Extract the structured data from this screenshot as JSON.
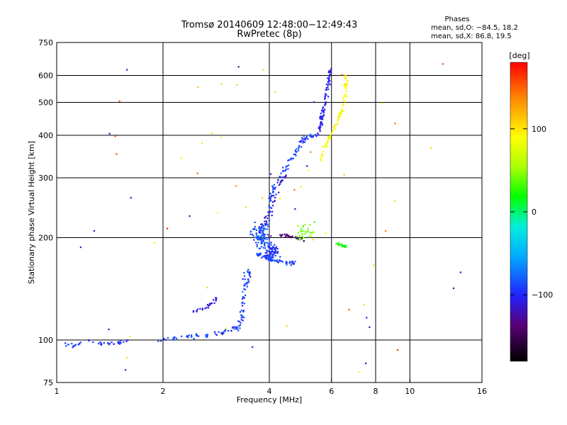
{
  "chart_data": {
    "type": "scatter",
    "title": "Tromsø 20140609 12:48:00−12:49:43",
    "subtitle": "RwPretec (8p)",
    "xlabel": "Frequency [MHz]",
    "ylabel": "Stationary phase Virtual Height [km]",
    "x_scale": "log",
    "y_scale": "log",
    "xlim": [
      1,
      16
    ],
    "ylim": [
      75,
      750
    ],
    "x_ticks": [
      1,
      2,
      4,
      6,
      8,
      10,
      16
    ],
    "x_tick_labels": [
      "1",
      "2",
      "4",
      "6",
      "8",
      "10",
      "16"
    ],
    "y_ticks": [
      75,
      100,
      200,
      300,
      400,
      500,
      600,
      750
    ],
    "y_tick_labels": [
      "75",
      "100",
      "200",
      "300",
      "400",
      "500",
      "600",
      "750"
    ],
    "x_grid": [
      2,
      4,
      6,
      8,
      10
    ],
    "y_grid": [
      100,
      200,
      300,
      400,
      500,
      600
    ],
    "grid": true,
    "colorbar": {
      "label": "[deg]",
      "range": [
        -180,
        180
      ],
      "ticks": [
        100,
        0,
        -100
      ],
      "tick_labels": [
        "100",
        "0",
        "−100"
      ]
    },
    "phases": {
      "heading": "Phases",
      "line_o": "mean, sd,O:  −84.5, 18.2",
      "line_x": "mean, sd,X:  86.8, 19.5"
    },
    "clusters": [
      {
        "kind": "line",
        "phase": -95,
        "count": 40,
        "pts": [
          [
            1.05,
            98
          ],
          [
            1.1,
            96
          ],
          [
            1.2,
            99
          ],
          [
            1.35,
            98
          ],
          [
            1.5,
            98
          ],
          [
            1.58,
            99
          ]
        ],
        "spread": 0.012
      },
      {
        "kind": "line",
        "phase": -90,
        "count": 60,
        "pts": [
          [
            1.95,
            100
          ],
          [
            2.1,
            101
          ],
          [
            2.3,
            102
          ],
          [
            2.5,
            103
          ],
          [
            2.8,
            104
          ],
          [
            3.1,
            107
          ],
          [
            3.3,
            110
          ]
        ],
        "spread": 0.012
      },
      {
        "kind": "line",
        "phase": -110,
        "count": 25,
        "pts": [
          [
            2.45,
            122
          ],
          [
            2.6,
            123
          ],
          [
            2.75,
            128
          ],
          [
            2.85,
            133
          ]
        ],
        "spread": 0.01
      },
      {
        "kind": "line",
        "phase": -90,
        "count": 55,
        "pts": [
          [
            3.3,
            108
          ],
          [
            3.35,
            120
          ],
          [
            3.4,
            135
          ],
          [
            3.45,
            150
          ],
          [
            3.5,
            160
          ]
        ],
        "spread": 0.02
      },
      {
        "kind": "blob",
        "phase": -85,
        "count": 100,
        "center": [
          3.8,
          200
        ],
        "rx": 0.05,
        "ry": 0.07
      },
      {
        "kind": "blob",
        "phase": -95,
        "count": 70,
        "center": [
          4.05,
          182
        ],
        "rx": 0.04,
        "ry": 0.05
      },
      {
        "kind": "line",
        "phase": -90,
        "count": 70,
        "pts": [
          [
            3.7,
            180
          ],
          [
            3.9,
            175
          ],
          [
            4.1,
            172
          ],
          [
            4.4,
            170
          ],
          [
            4.7,
            168
          ]
        ],
        "spread": 0.012
      },
      {
        "kind": "line",
        "phase": -90,
        "count": 100,
        "pts": [
          [
            3.95,
            210
          ],
          [
            4.0,
            230
          ],
          [
            4.05,
            260
          ],
          [
            4.15,
            285
          ],
          [
            4.3,
            305
          ],
          [
            4.5,
            325
          ],
          [
            4.7,
            350
          ],
          [
            4.9,
            380
          ],
          [
            5.1,
            395
          ],
          [
            5.4,
            400
          ]
        ],
        "spread": 0.012
      },
      {
        "kind": "line",
        "phase": -110,
        "count": 40,
        "pts": [
          [
            3.8,
            215
          ],
          [
            4.0,
            235
          ],
          [
            4.1,
            250
          ],
          [
            4.3,
            290
          ],
          [
            4.5,
            310
          ]
        ],
        "spread": 0.012
      },
      {
        "kind": "line",
        "phase": -140,
        "count": 25,
        "pts": [
          [
            4.3,
            205
          ],
          [
            4.5,
            203
          ],
          [
            4.8,
            200
          ],
          [
            5.0,
            197
          ]
        ],
        "spread": 0.01
      },
      {
        "kind": "line",
        "phase": -105,
        "count": 90,
        "pts": [
          [
            5.5,
            400
          ],
          [
            5.6,
            440
          ],
          [
            5.7,
            480
          ],
          [
            5.8,
            530
          ],
          [
            5.9,
            580
          ],
          [
            5.95,
            630
          ]
        ],
        "spread": 0.01
      },
      {
        "kind": "line",
        "phase": 90,
        "count": 90,
        "pts": [
          [
            5.55,
            335
          ],
          [
            5.75,
            370
          ],
          [
            6.0,
            405
          ],
          [
            6.25,
            440
          ],
          [
            6.45,
            480
          ],
          [
            6.55,
            530
          ],
          [
            6.6,
            570
          ],
          [
            6.6,
            610
          ]
        ],
        "spread": 0.01
      },
      {
        "kind": "line",
        "phase": 20,
        "count": 20,
        "pts": [
          [
            6.2,
            193
          ],
          [
            6.4,
            190
          ],
          [
            6.6,
            188
          ]
        ],
        "spread": 0.008
      },
      {
        "kind": "blob",
        "phase": 40,
        "count": 30,
        "center": [
          5.0,
          210
        ],
        "rx": 0.05,
        "ry": 0.05
      },
      {
        "kind": "scatter",
        "phase": 100,
        "count": 30,
        "xr": [
          1.4,
          13
        ],
        "yr": [
          80,
          650
        ]
      },
      {
        "kind": "scatter",
        "phase": -120,
        "count": 20,
        "xr": [
          1.0,
          14
        ],
        "yr": [
          80,
          650
        ]
      },
      {
        "kind": "scatter",
        "phase": 150,
        "count": 15,
        "xr": [
          1.4,
          13
        ],
        "yr": [
          80,
          650
        ]
      }
    ]
  }
}
